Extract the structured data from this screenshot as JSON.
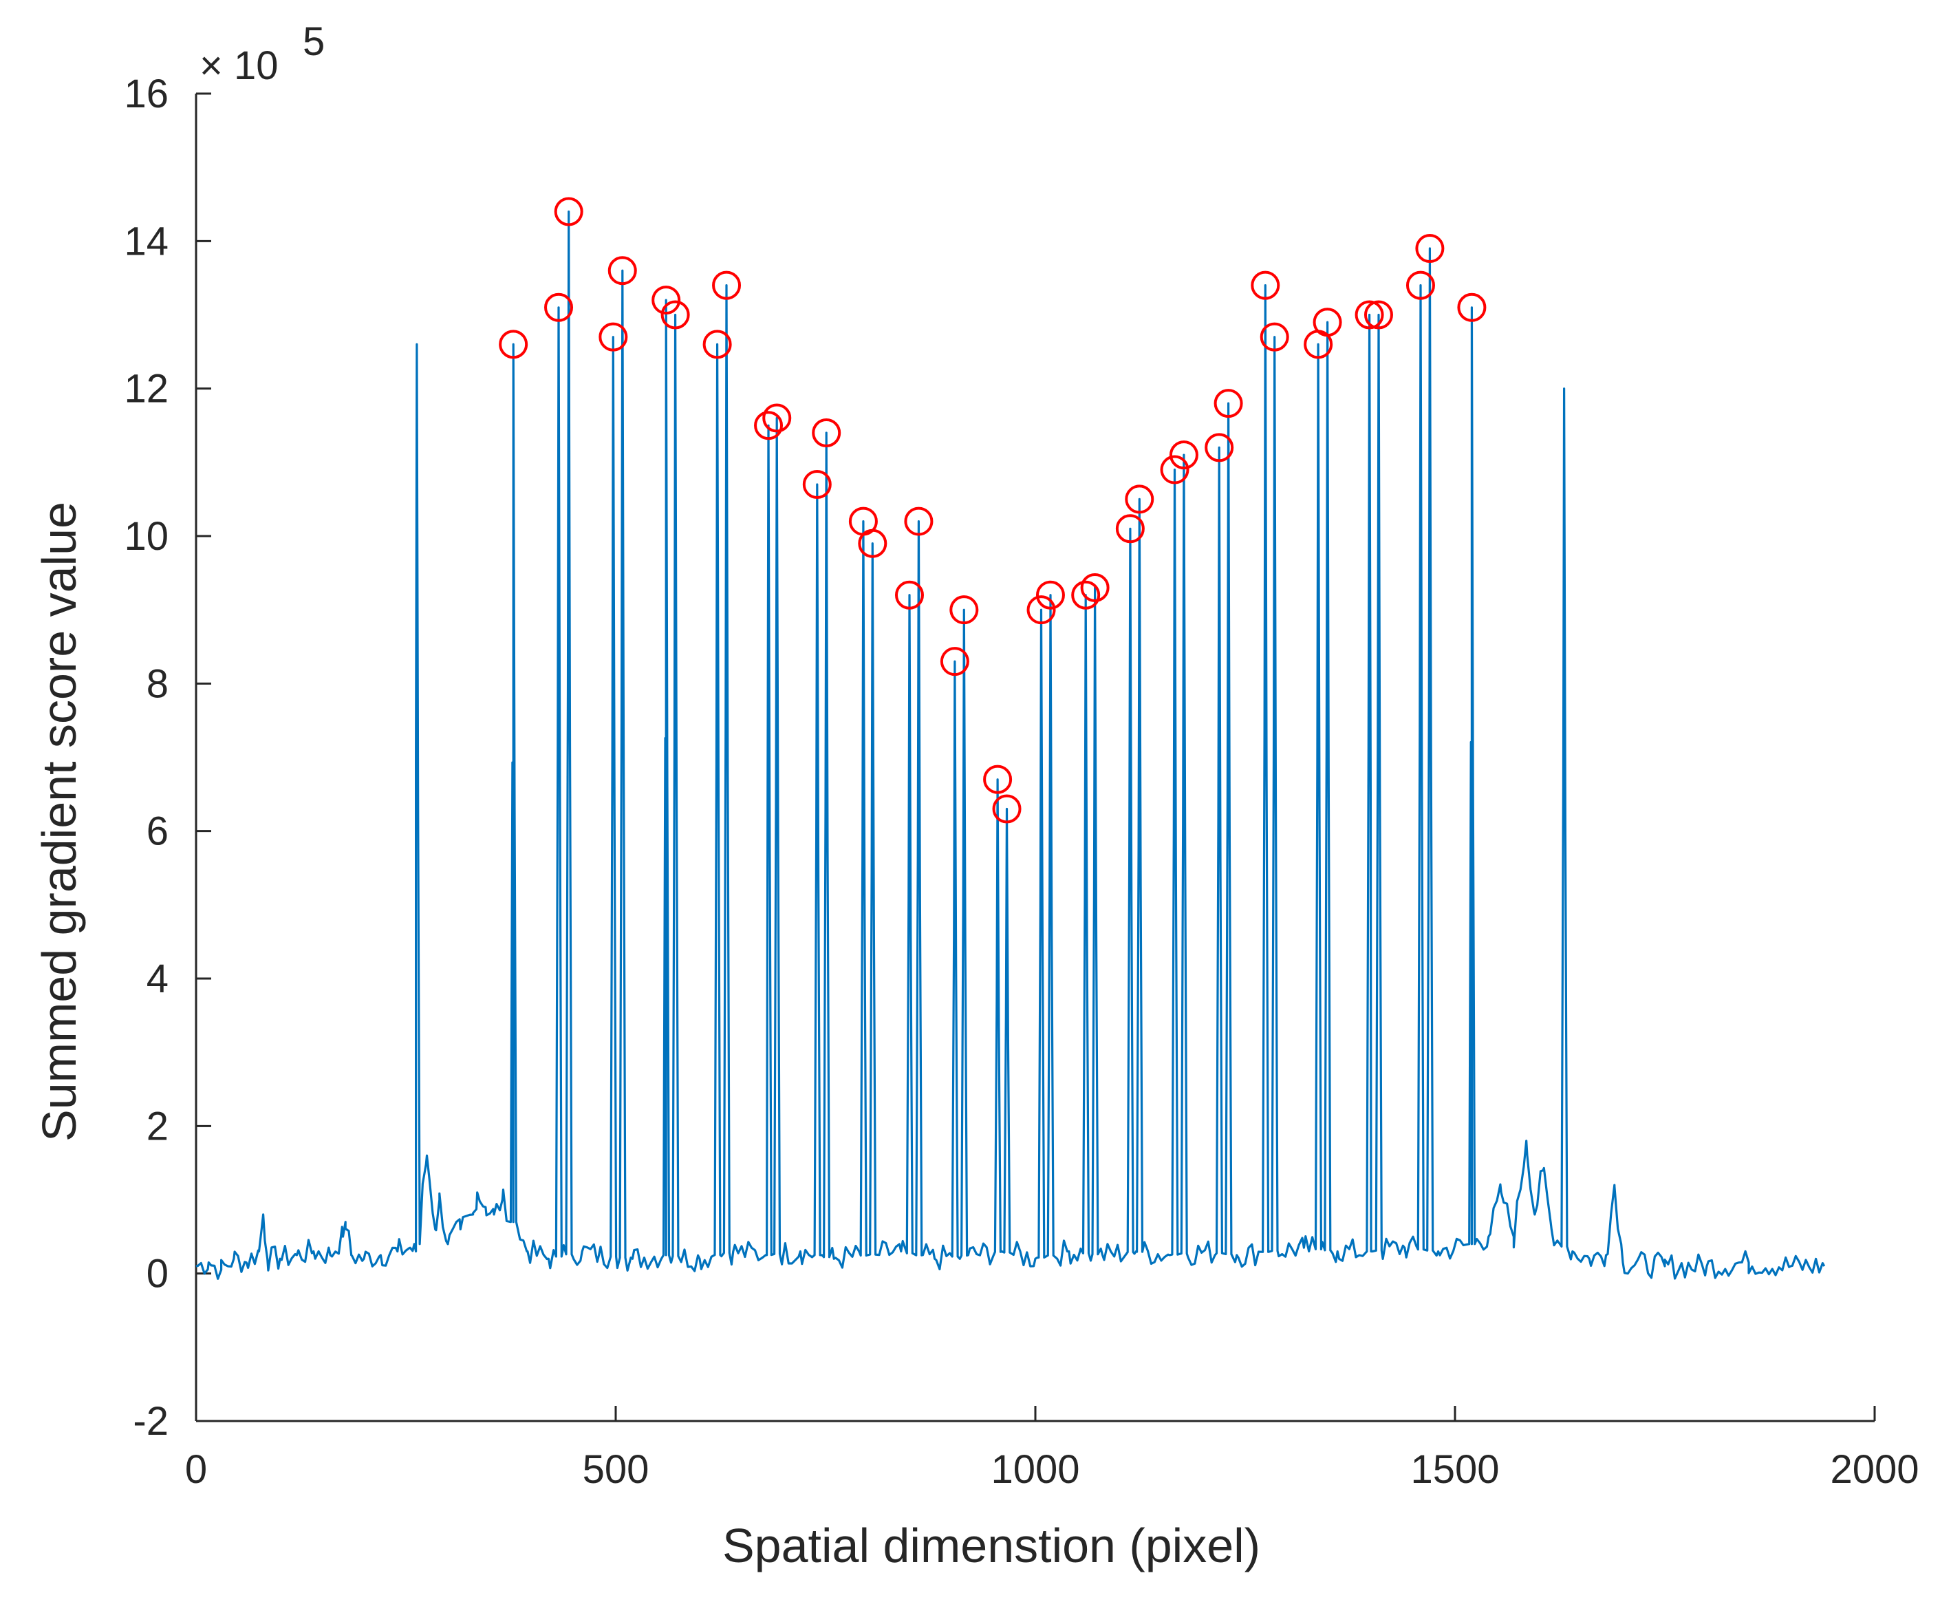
{
  "chart_data": {
    "type": "line",
    "title": "",
    "xlabel": "Spatial dimenstion (pixel)",
    "ylabel": "Summed gradient score value",
    "xlim": [
      0,
      2000
    ],
    "ylim": [
      -2,
      16
    ],
    "y_scale_factor": "× 10",
    "y_scale_exponent": "5",
    "x_ticks": [
      "0",
      "500",
      "1000",
      "1500",
      "2000"
    ],
    "y_ticks": [
      "-2",
      "0",
      "2",
      "4",
      "6",
      "8",
      "10",
      "12",
      "14",
      "16"
    ],
    "x_tick_values": [
      0,
      500,
      1000,
      1500,
      2000
    ],
    "y_tick_values": [
      -2,
      0,
      2,
      4,
      6,
      8,
      10,
      12,
      14,
      16
    ],
    "line_color": "#0072BD",
    "marker_color": "#FF0000",
    "series": [
      {
        "name": "Summed gradient score",
        "baseline": [
          [
            0,
            0.1
          ],
          [
            15,
            0.15
          ],
          [
            30,
            0.05
          ],
          [
            45,
            0.2
          ],
          [
            60,
            0.15
          ],
          [
            75,
            0.3
          ],
          [
            80,
            0.8
          ],
          [
            85,
            0.2
          ],
          [
            100,
            0.2
          ],
          [
            120,
            0.25
          ],
          [
            140,
            0.3
          ],
          [
            160,
            0.25
          ],
          [
            175,
            0.5
          ],
          [
            178,
            0.7
          ],
          [
            185,
            0.25
          ],
          [
            200,
            0.2
          ],
          [
            220,
            0.25
          ],
          [
            240,
            0.3
          ],
          [
            255,
            0.35
          ],
          [
            262,
            0.3
          ],
          [
            275,
            1.6
          ],
          [
            285,
            0.6
          ],
          [
            290,
            1.0
          ],
          [
            300,
            0.4
          ],
          [
            315,
            0.6
          ],
          [
            330,
            0.8
          ],
          [
            335,
            1.1
          ],
          [
            345,
            0.9
          ],
          [
            355,
            0.8
          ],
          [
            365,
            1.0
          ],
          [
            378,
            0.7
          ],
          [
            395,
            0.3
          ],
          [
            420,
            0.2
          ],
          [
            460,
            0.3
          ],
          [
            480,
            0.25
          ],
          [
            520,
            0.2
          ],
          [
            560,
            0.25
          ],
          [
            600,
            0.2
          ],
          [
            640,
            0.3
          ],
          [
            680,
            0.25
          ],
          [
            720,
            0.3
          ],
          [
            760,
            0.2
          ],
          [
            800,
            0.25
          ],
          [
            840,
            0.3
          ],
          [
            880,
            0.2
          ],
          [
            920,
            0.25
          ],
          [
            960,
            0.3
          ],
          [
            1000,
            0.2
          ],
          [
            1040,
            0.3
          ],
          [
            1080,
            0.25
          ],
          [
            1120,
            0.3
          ],
          [
            1160,
            0.25
          ],
          [
            1200,
            0.3
          ],
          [
            1240,
            0.25
          ],
          [
            1280,
            0.3
          ],
          [
            1320,
            0.35
          ],
          [
            1360,
            0.3
          ],
          [
            1400,
            0.3
          ],
          [
            1440,
            0.35
          ],
          [
            1480,
            0.3
          ],
          [
            1520,
            0.4
          ],
          [
            1540,
            0.5
          ],
          [
            1555,
            1.1
          ],
          [
            1570,
            0.5
          ],
          [
            1585,
            1.8
          ],
          [
            1595,
            0.8
          ],
          [
            1605,
            1.4
          ],
          [
            1615,
            0.6
          ],
          [
            1625,
            0.4
          ],
          [
            1640,
            0.3
          ],
          [
            1660,
            0.2
          ],
          [
            1680,
            0.25
          ],
          [
            1690,
            1.2
          ],
          [
            1700,
            0.15
          ],
          [
            1750,
            0.1
          ],
          [
            1800,
            0.1
          ],
          [
            1850,
            0.15
          ],
          [
            1900,
            0.1
          ],
          [
            1940,
            0.1
          ]
        ],
        "spikes": [
          [
            263,
            12.6
          ],
          [
            378,
            12.6
          ],
          [
            432,
            13.1
          ],
          [
            444,
            14.4
          ],
          [
            497,
            12.7
          ],
          [
            508,
            13.6
          ],
          [
            560,
            13.2
          ],
          [
            571,
            13.0
          ],
          [
            621,
            12.6
          ],
          [
            632,
            13.4
          ],
          [
            682,
            11.5
          ],
          [
            692,
            11.6
          ],
          [
            740,
            10.7
          ],
          [
            751,
            11.4
          ],
          [
            795,
            10.2
          ],
          [
            806,
            9.9
          ],
          [
            850,
            9.2
          ],
          [
            861,
            10.2
          ],
          [
            904,
            8.3
          ],
          [
            915,
            9.0
          ],
          [
            955,
            6.7
          ],
          [
            966,
            6.3
          ],
          [
            1007,
            9.0
          ],
          [
            1018,
            9.2
          ],
          [
            1060,
            9.2
          ],
          [
            1071,
            9.3
          ],
          [
            1113,
            10.1
          ],
          [
            1124,
            10.5
          ],
          [
            1166,
            10.9
          ],
          [
            1177,
            11.1
          ],
          [
            1219,
            11.2
          ],
          [
            1230,
            11.8
          ],
          [
            1274,
            13.4
          ],
          [
            1285,
            12.7
          ],
          [
            1337,
            12.6
          ],
          [
            1348,
            12.9
          ],
          [
            1398,
            13.0
          ],
          [
            1409,
            13.0
          ],
          [
            1459,
            13.4
          ],
          [
            1470,
            13.9
          ],
          [
            1520,
            13.1
          ],
          [
            1630,
            12.0
          ]
        ]
      }
    ],
    "peaks": [
      [
        378,
        12.6
      ],
      [
        432,
        13.1
      ],
      [
        444,
        14.4
      ],
      [
        497,
        12.7
      ],
      [
        508,
        13.6
      ],
      [
        560,
        13.2
      ],
      [
        571,
        13.0
      ],
      [
        621,
        12.6
      ],
      [
        632,
        13.4
      ],
      [
        682,
        11.5
      ],
      [
        692,
        11.6
      ],
      [
        740,
        10.7
      ],
      [
        751,
        11.4
      ],
      [
        795,
        10.2
      ],
      [
        806,
        9.9
      ],
      [
        850,
        9.2
      ],
      [
        861,
        10.2
      ],
      [
        904,
        8.3
      ],
      [
        915,
        9.0
      ],
      [
        955,
        6.7
      ],
      [
        966,
        6.3
      ],
      [
        1007,
        9.0
      ],
      [
        1018,
        9.2
      ],
      [
        1060,
        9.2
      ],
      [
        1071,
        9.3
      ],
      [
        1113,
        10.1
      ],
      [
        1124,
        10.5
      ],
      [
        1166,
        10.9
      ],
      [
        1177,
        11.1
      ],
      [
        1219,
        11.2
      ],
      [
        1230,
        11.8
      ],
      [
        1274,
        13.4
      ],
      [
        1285,
        12.7
      ],
      [
        1337,
        12.6
      ],
      [
        1348,
        12.9
      ],
      [
        1398,
        13.0
      ],
      [
        1409,
        13.0
      ],
      [
        1459,
        13.4
      ],
      [
        1470,
        13.9
      ],
      [
        1520,
        13.1
      ]
    ]
  }
}
